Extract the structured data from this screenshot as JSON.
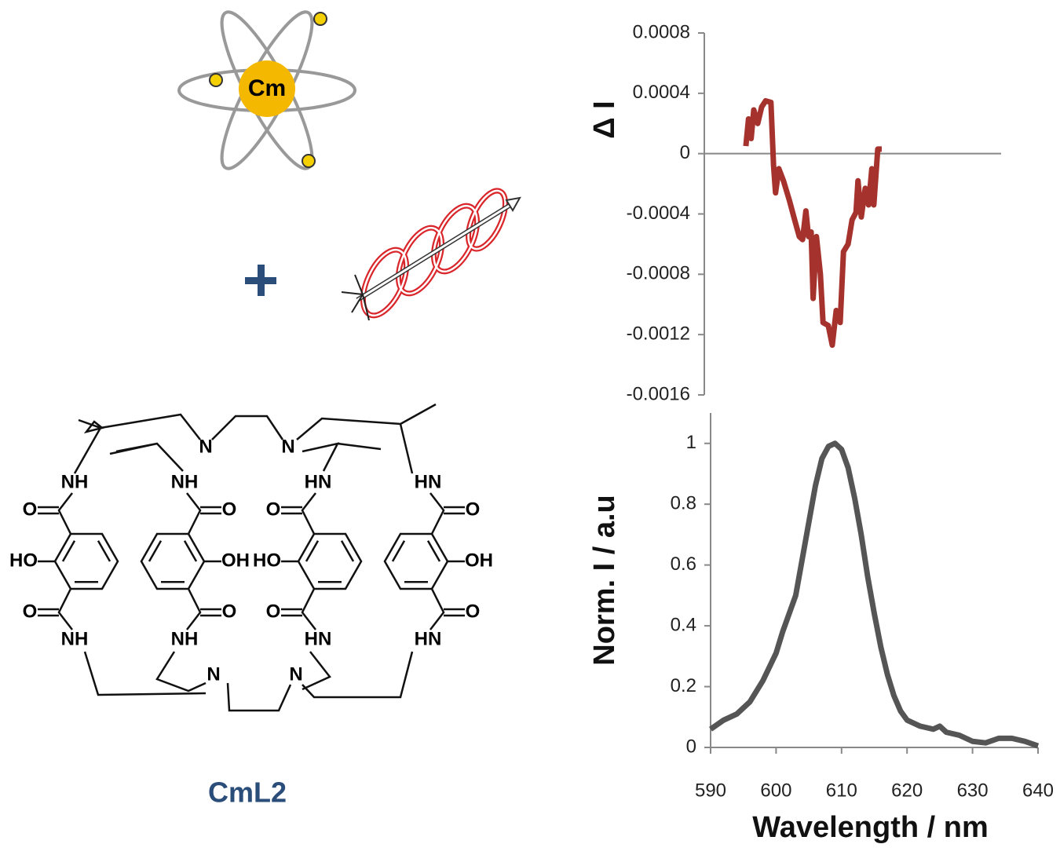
{
  "atom_icon": {
    "label": "Cm"
  },
  "structure": {
    "label": "CmL2",
    "atoms": [
      "NH",
      "O",
      "HO",
      "O",
      "NH",
      "NH",
      "O",
      "OH",
      "O",
      "NH",
      "HN",
      "O",
      "HO",
      "O",
      "HN",
      "HN",
      "O",
      "OH",
      "O",
      "HN",
      "N",
      "N",
      "N",
      "N"
    ]
  },
  "chart_data": [
    {
      "type": "line",
      "y_label": "Δ I",
      "color": "#a5322c",
      "x": [
        596.3,
        596.7,
        597.1,
        597.5,
        598.1,
        598.7,
        599.3,
        600.1,
        600.5,
        600.8,
        601.3,
        602.0,
        602.9,
        603.7,
        604.4,
        604.9,
        605.4,
        605.8,
        606.2,
        606.5,
        607.0,
        607.6,
        608.0,
        608.8,
        609.4,
        610.0,
        610.6,
        611.1,
        611.8,
        612.4,
        613.0,
        613.3,
        613.8,
        614.4,
        614.9,
        615.4,
        615.7,
        616.3,
        616.9
      ],
      "values": [
        5e-05,
        0.00023,
        0.0001,
        0.00029,
        0.0002,
        0.00031,
        0.00035,
        0.00034,
        -8e-05,
        -0.00026,
        -0.0001,
        -0.00018,
        -0.00031,
        -0.00044,
        -0.00055,
        -0.00057,
        -0.00038,
        -0.00055,
        -0.00052,
        -0.00096,
        -0.00055,
        -0.0008,
        -0.00112,
        -0.00114,
        -0.00127,
        -0.00104,
        -0.00112,
        -0.00065,
        -0.0006,
        -0.00044,
        -0.00039,
        -0.00018,
        -0.00042,
        -0.00023,
        -0.00034,
        -0.0001,
        -0.00034,
        3e-05,
        3e-05
      ],
      "xlim": [
        590,
        635
      ],
      "ylim": [
        -0.0016,
        0.0008
      ],
      "yticks": [
        0.0008,
        0.0004,
        0,
        -0.0004,
        -0.0008,
        -0.0012,
        -0.0016
      ]
    },
    {
      "type": "line",
      "x_label": "Wavelength / nm",
      "y_label": "Norm. I / a.u",
      "color": "#555555",
      "x": [
        590,
        592,
        594,
        596,
        598,
        600,
        601,
        602,
        603,
        604,
        605,
        606,
        607,
        608,
        609,
        610,
        611,
        612,
        613,
        614,
        615,
        616,
        617,
        618,
        619,
        620,
        622,
        624,
        625,
        626,
        628,
        630,
        632,
        634,
        636,
        638,
        640
      ],
      "values": [
        0.06,
        0.09,
        0.11,
        0.15,
        0.22,
        0.31,
        0.38,
        0.44,
        0.5,
        0.62,
        0.74,
        0.86,
        0.95,
        0.99,
        1,
        0.98,
        0.92,
        0.82,
        0.7,
        0.56,
        0.44,
        0.33,
        0.24,
        0.17,
        0.12,
        0.09,
        0.07,
        0.06,
        0.07,
        0.05,
        0.04,
        0.02,
        0.015,
        0.03,
        0.03,
        0.02,
        0.005
      ],
      "xlim": [
        590,
        640
      ],
      "xticks": [
        590,
        600,
        610,
        620,
        630,
        640
      ],
      "ylim": [
        0,
        1.1
      ],
      "yticks": [
        0,
        0.2,
        0.4,
        0.6,
        0.8,
        1
      ]
    }
  ]
}
